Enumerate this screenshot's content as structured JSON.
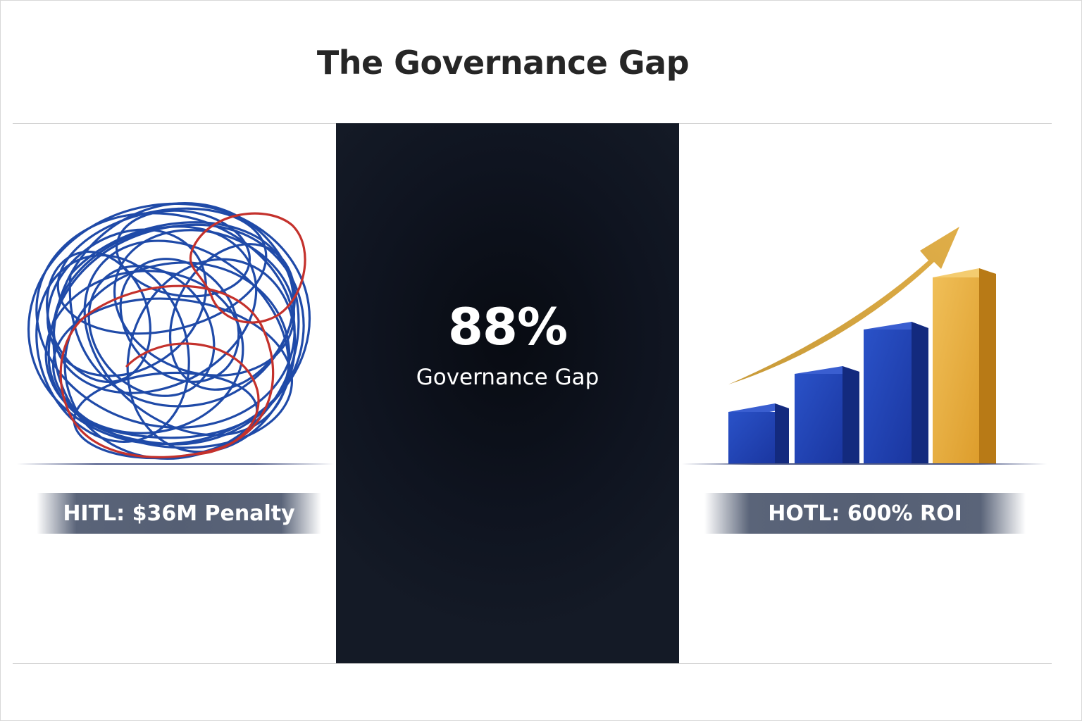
{
  "slide": {
    "title": "The Governance Gap"
  },
  "center": {
    "stat_value": "88%",
    "stat_label": "Governance Gap"
  },
  "left": {
    "icon": "tangled-scribble",
    "banner_label": "HITL: $36M Penalty"
  },
  "right": {
    "icon": "rising-bar-chart",
    "banner_label": "HOTL: 600% ROI"
  },
  "colors": {
    "panel_dark": "#0f1420",
    "scribble_blue": "#1f4aa8",
    "scribble_red": "#c4312c",
    "bar_blue": "#1e3fae",
    "bar_gold": "#e2a83a",
    "banner_gray": "#555f74"
  }
}
